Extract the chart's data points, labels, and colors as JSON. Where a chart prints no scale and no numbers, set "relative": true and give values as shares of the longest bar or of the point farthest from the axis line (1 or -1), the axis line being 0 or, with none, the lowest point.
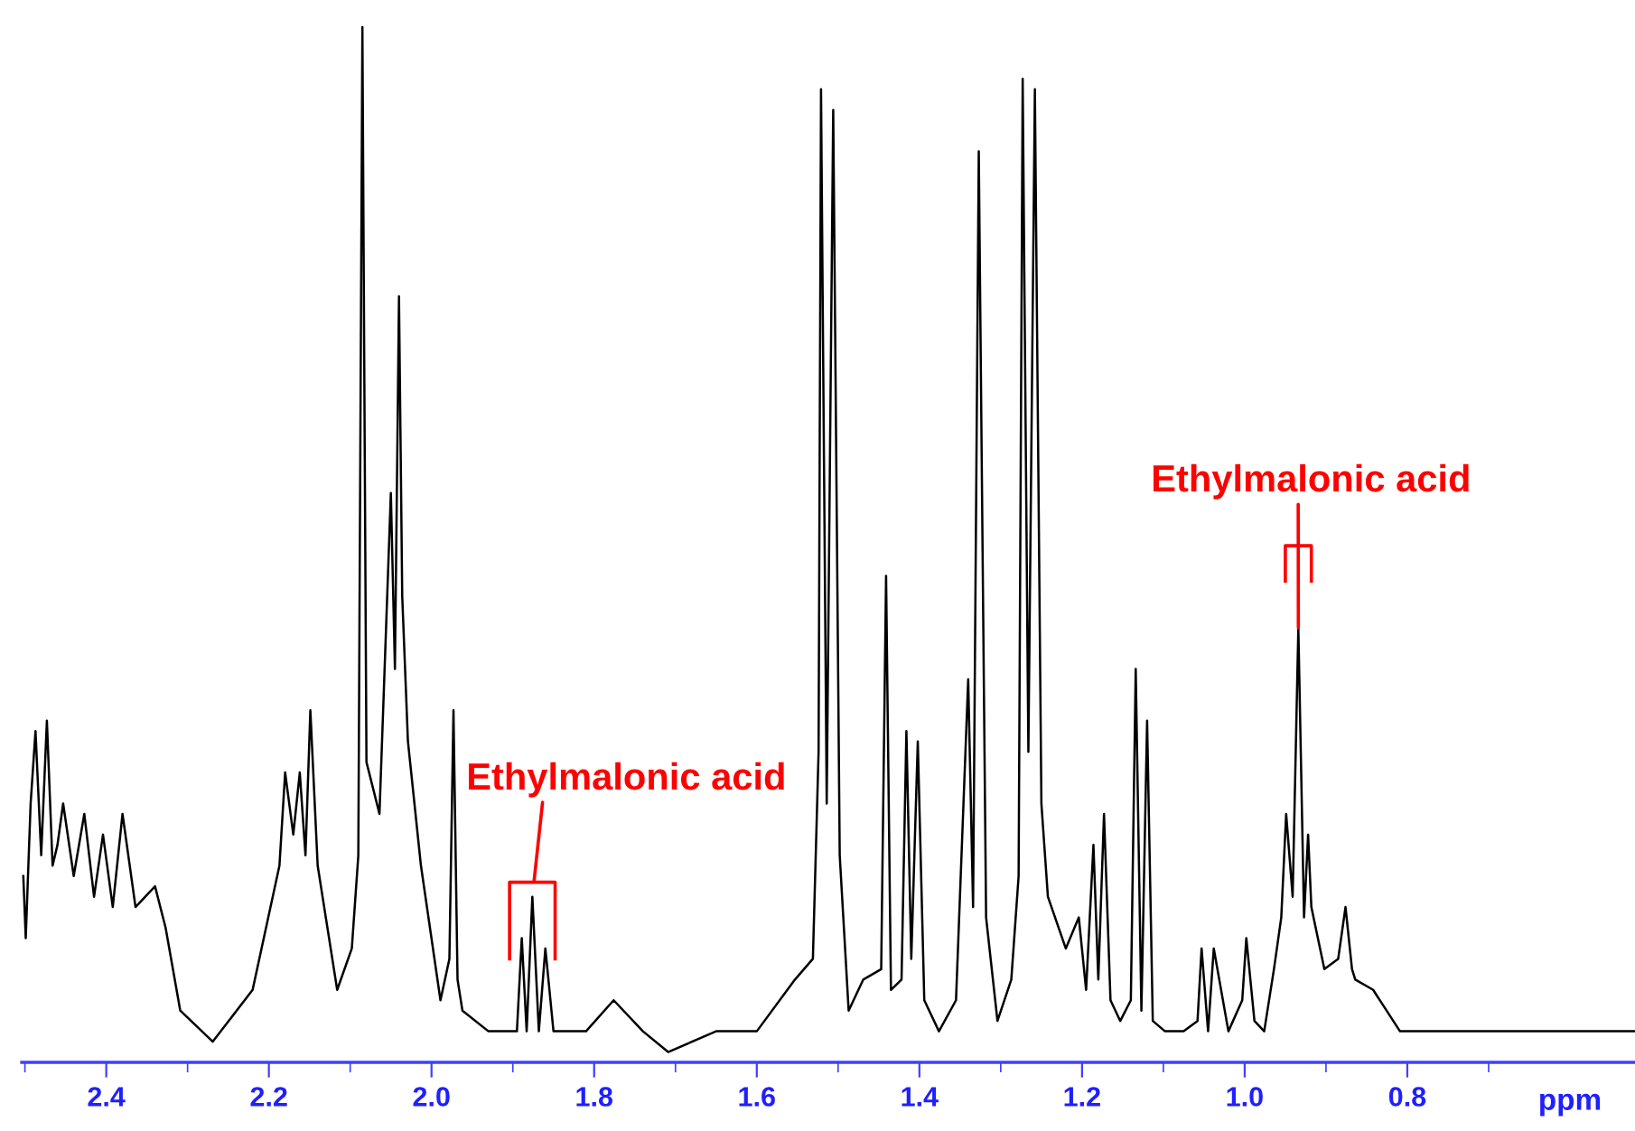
{
  "chart_data": {
    "type": "line",
    "relative": true,
    "xlabel": "ppm",
    "xlim": [
      2.504,
      0.52
    ],
    "xticks": [
      2.4,
      2.2,
      {
        "value": 2.0,
        "label": "2.0"
      },
      1.8,
      1.6,
      1.4,
      1.2,
      {
        "value": 1.0,
        "label": "1.0"
      },
      0.8
    ],
    "tick_labels": "x",
    "grid": false,
    "marker": "none",
    "line_style": "solid",
    "series": [
      {
        "color": "#000000",
        "x": [
          2.502,
          2.499,
          2.493,
          2.487,
          2.48,
          2.473,
          2.466,
          2.46,
          2.453,
          2.44,
          2.427,
          2.415,
          2.404,
          2.392,
          2.38,
          2.364,
          2.34,
          2.327,
          2.309,
          2.269,
          2.22,
          2.187,
          2.18,
          2.17,
          2.162,
          2.155,
          2.149,
          2.14,
          2.116,
          2.098,
          2.09,
          2.085,
          2.08,
          2.064,
          2.05,
          2.045,
          2.04,
          2.036,
          2.029,
          2.013,
          1.989,
          1.978,
          1.973,
          1.968,
          1.962,
          1.93,
          1.895,
          1.889,
          1.883,
          1.876,
          1.868,
          1.86,
          1.85,
          1.81,
          1.776,
          1.74,
          1.709,
          1.65,
          1.6,
          1.553,
          1.531,
          1.524,
          1.521,
          1.514,
          1.506,
          1.498,
          1.487,
          1.469,
          1.447,
          1.441,
          1.435,
          1.422,
          1.416,
          1.41,
          1.402,
          1.394,
          1.376,
          1.355,
          1.34,
          1.334,
          1.327,
          1.318,
          1.304,
          1.287,
          1.278,
          1.273,
          1.266,
          1.258,
          1.25,
          1.242,
          1.22,
          1.204,
          1.195,
          1.186,
          1.18,
          1.173,
          1.165,
          1.153,
          1.14,
          1.134,
          1.127,
          1.12,
          1.113,
          1.098,
          1.075,
          1.058,
          1.053,
          1.045,
          1.038,
          1.02,
          1.003,
          0.998,
          0.988,
          0.976,
          0.964,
          0.955,
          0.949,
          0.941,
          0.934,
          0.927,
          0.922,
          0.918,
          0.91,
          0.902,
          0.885,
          0.876,
          0.868,
          0.864,
          0.842,
          0.809,
          0.75,
          0.68,
          0.6,
          0.52
        ],
        "values": [
          0.18,
          0.12,
          0.25,
          0.32,
          0.2,
          0.33,
          0.19,
          0.21,
          0.25,
          0.18,
          0.24,
          0.16,
          0.22,
          0.15,
          0.24,
          0.15,
          0.17,
          0.13,
          0.05,
          0.02,
          0.07,
          0.19,
          0.28,
          0.22,
          0.28,
          0.2,
          0.34,
          0.19,
          0.07,
          0.11,
          0.2,
          1.0,
          0.29,
          0.24,
          0.55,
          0.38,
          0.74,
          0.45,
          0.31,
          0.19,
          0.06,
          0.1,
          0.34,
          0.08,
          0.05,
          0.03,
          0.03,
          0.12,
          0.03,
          0.16,
          0.03,
          0.11,
          0.03,
          0.03,
          0.06,
          0.03,
          0.01,
          0.03,
          0.03,
          0.08,
          0.1,
          0.3,
          0.94,
          0.25,
          0.92,
          0.2,
          0.05,
          0.08,
          0.09,
          0.47,
          0.07,
          0.08,
          0.32,
          0.1,
          0.31,
          0.06,
          0.03,
          0.06,
          0.37,
          0.15,
          0.88,
          0.14,
          0.04,
          0.08,
          0.18,
          0.95,
          0.3,
          0.94,
          0.25,
          0.16,
          0.11,
          0.14,
          0.07,
          0.21,
          0.08,
          0.24,
          0.06,
          0.04,
          0.06,
          0.38,
          0.05,
          0.33,
          0.04,
          0.03,
          0.03,
          0.04,
          0.11,
          0.03,
          0.11,
          0.03,
          0.06,
          0.12,
          0.04,
          0.03,
          0.09,
          0.14,
          0.24,
          0.16,
          0.42,
          0.14,
          0.22,
          0.15,
          0.12,
          0.09,
          0.1,
          0.15,
          0.09,
          0.08,
          0.07,
          0.03,
          0.03,
          0.03,
          0.03,
          0.03
        ]
      }
    ],
    "annotations": [
      {
        "text": "Ethylmalonic acid",
        "x": 1.876,
        "y": 0.16
      },
      {
        "text": "Ethylmalonic acid",
        "x": 0.934,
        "y": 0.42
      }
    ]
  }
}
